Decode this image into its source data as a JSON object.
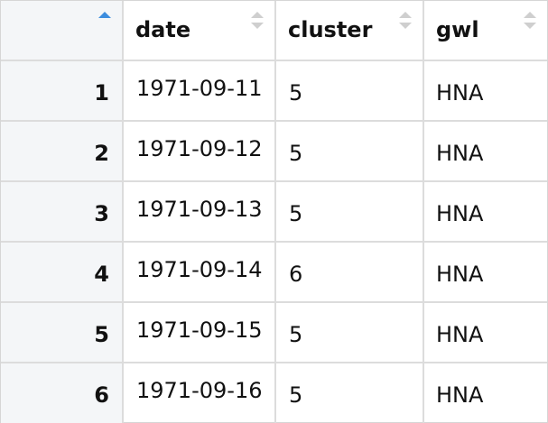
{
  "table": {
    "columns": [
      {
        "key": "index",
        "label": ""
      },
      {
        "key": "date",
        "label": "date"
      },
      {
        "key": "cluster",
        "label": "cluster"
      },
      {
        "key": "gwl",
        "label": "gwl"
      }
    ],
    "sort": {
      "column": "index",
      "direction": "ascending"
    },
    "rows": [
      {
        "index": "1",
        "date": "1971-09-11",
        "cluster": "5",
        "gwl": "HNA"
      },
      {
        "index": "2",
        "date": "1971-09-12",
        "cluster": "5",
        "gwl": "HNA"
      },
      {
        "index": "3",
        "date": "1971-09-13",
        "cluster": "5",
        "gwl": "HNA"
      },
      {
        "index": "4",
        "date": "1971-09-14",
        "cluster": "6",
        "gwl": "HNA"
      },
      {
        "index": "5",
        "date": "1971-09-15",
        "cluster": "5",
        "gwl": "HNA"
      },
      {
        "index": "6",
        "date": "1971-09-16",
        "cluster": "5",
        "gwl": "HNA"
      }
    ],
    "colors": {
      "sort_active": "#3c8dde",
      "sort_inactive": "#cfcfcf",
      "index_bg": "#f4f6f8",
      "grid": "#dcdcdc"
    }
  }
}
